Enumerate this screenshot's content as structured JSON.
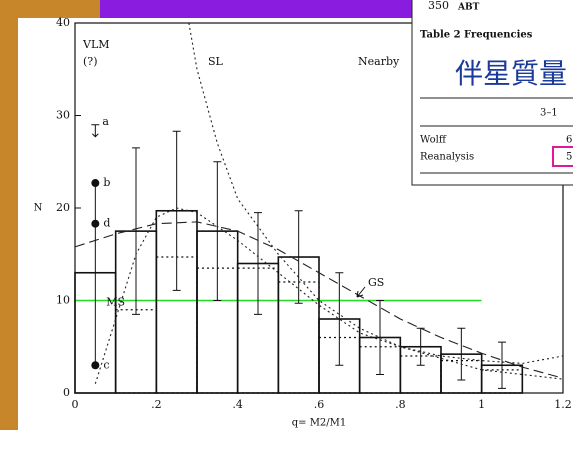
{
  "chart_data": {
    "type": "histogram",
    "xlabel": "q= M2/M1",
    "ylabel": "N",
    "xlim": [
      0,
      1.2
    ],
    "ylim": [
      0,
      40
    ],
    "xticks": [
      0,
      {
        "value": 0.2,
        "label": ".2"
      },
      {
        "value": 0.4,
        "label": ".4"
      },
      {
        "value": 0.6,
        "label": ".6"
      },
      {
        "value": 0.8,
        "label": ".8"
      },
      1,
      1.2
    ],
    "yticks": [
      0,
      10,
      20,
      30,
      40
    ],
    "bins": [
      0,
      0.1,
      0.2,
      0.3,
      0.4,
      0.5,
      0.6,
      0.7,
      0.8,
      0.9,
      1.0,
      1.1
    ],
    "histograms": [
      {
        "style": "solid",
        "values": [
          13,
          17.5,
          19.7,
          17.5,
          14,
          14.7,
          8,
          6,
          5,
          4.2,
          3
        ],
        "errors": [
          null,
          9,
          8.6,
          7.5,
          5.5,
          5,
          5,
          4,
          2,
          2.8,
          2.5
        ]
      },
      {
        "style": "dotted",
        "values": [
          0,
          9,
          14.7,
          13.5,
          13.5,
          12,
          6,
          5,
          4,
          3.5,
          2.5
        ]
      }
    ],
    "curves": [
      {
        "style": "dotted",
        "x": [
          0.28,
          0.3,
          0.35,
          0.4,
          0.5,
          0.6,
          0.7,
          0.8,
          1.0,
          1.2
        ],
        "y": [
          40,
          35,
          27,
          21,
          15,
          10,
          7,
          5,
          2.5,
          1.5
        ]
      },
      {
        "style": "dashed",
        "x": [
          0,
          0.1,
          0.2,
          0.3,
          0.4,
          0.5,
          0.6,
          0.7,
          0.8,
          0.9,
          1.0,
          1.1,
          1.2
        ],
        "y": [
          15.8,
          17.2,
          18.3,
          18.5,
          17.5,
          15.5,
          13,
          10.5,
          8,
          6,
          4.3,
          2.8,
          1.6
        ]
      },
      {
        "style": "dotted",
        "x": [
          0.05,
          0.1,
          0.15,
          0.2,
          0.25,
          0.3,
          0.4,
          0.5,
          0.6,
          0.7,
          0.8,
          0.9,
          1.0,
          1.1,
          1.2
        ],
        "y": [
          1,
          8,
          15,
          19,
          20,
          19.5,
          16.5,
          13,
          9.5,
          6.5,
          5,
          4,
          3.5,
          3.2,
          4
        ]
      }
    ],
    "hline": {
      "value": 10,
      "color": "#22dd22",
      "label": "MS"
    },
    "points": {
      "x": [
        0.05,
        0.05,
        0.05
      ],
      "y": [
        22.7,
        18.3,
        3
      ],
      "labels": [
        "b",
        "d",
        "c"
      ]
    },
    "limit": {
      "x": 0.05,
      "y": 29,
      "label": "a"
    },
    "annotations": [
      "VLM",
      "(?)",
      "SL",
      "Nearby",
      "GS"
    ]
  },
  "inset": {
    "page": "350",
    "running_head": "ABT",
    "caption": "Table 2 Frequencies",
    "overlay": "伴星質量",
    "column": "3–1",
    "rows": [
      [
        "Wolff",
        "6"
      ],
      [
        "Reanalysis",
        "5"
      ]
    ]
  }
}
